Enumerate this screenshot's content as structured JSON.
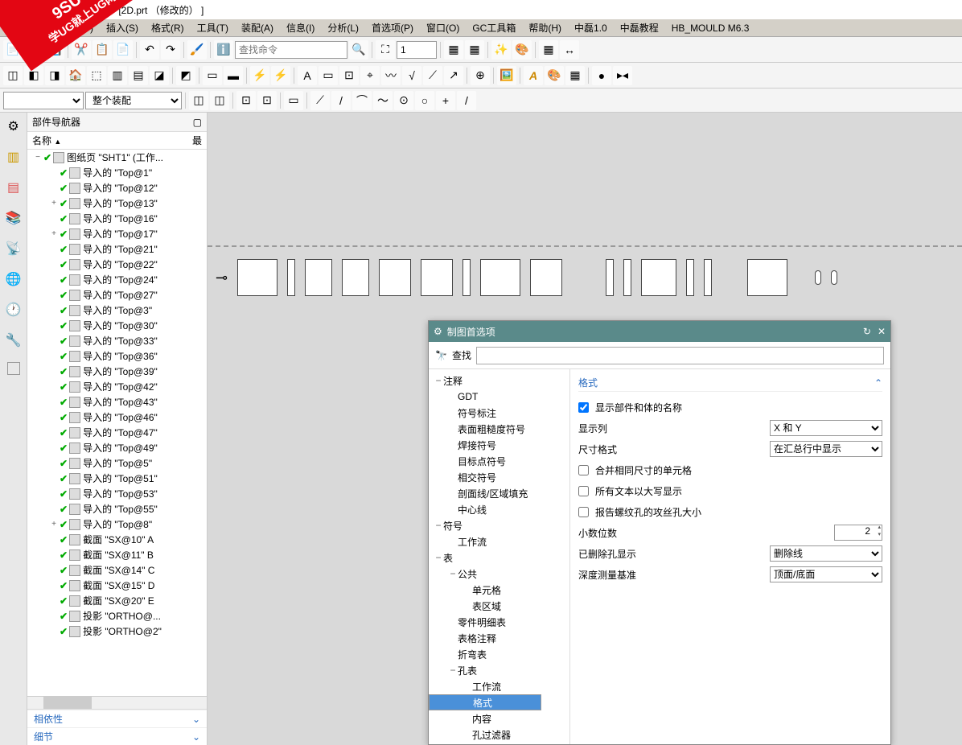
{
  "watermark": {
    "line1": "9SUG",
    "line2": "学UG就上UG网"
  },
  "title": " - [2D.prt （修改的） ]",
  "menu": [
    "视图(V)",
    "插入(S)",
    "格式(R)",
    "工具(T)",
    "装配(A)",
    "信息(I)",
    "分析(L)",
    "首选项(P)",
    "窗口(O)",
    "GC工具箱",
    "帮助(H)",
    "中磊1.0",
    "中磊教程",
    "HB_MOULD M6.3"
  ],
  "toolbar1": {
    "search_placeholder": "查找命令",
    "num_value": "1"
  },
  "toolbar2": {
    "assembly_dropdown": "整个装配"
  },
  "nav": {
    "title": "部件导航器",
    "col1": "名称",
    "col2": "最",
    "root": "图纸页 \"SHT1\" (工作...",
    "items": [
      "导入的 \"Top@1\"",
      "导入的 \"Top@12\"",
      "导入的 \"Top@13\"",
      "导入的 \"Top@16\"",
      "导入的 \"Top@17\"",
      "导入的 \"Top@21\"",
      "导入的 \"Top@22\"",
      "导入的 \"Top@24\"",
      "导入的 \"Top@27\"",
      "导入的 \"Top@3\"",
      "导入的 \"Top@30\"",
      "导入的 \"Top@33\"",
      "导入的 \"Top@36\"",
      "导入的 \"Top@39\"",
      "导入的 \"Top@42\"",
      "导入的 \"Top@43\"",
      "导入的 \"Top@46\"",
      "导入的 \"Top@47\"",
      "导入的 \"Top@49\"",
      "导入的 \"Top@5\"",
      "导入的 \"Top@51\"",
      "导入的 \"Top@53\"",
      "导入的 \"Top@55\"",
      "导入的 \"Top@8\"",
      "截面 \"SX@10\" A",
      "截面 \"SX@11\" B",
      "截面 \"SX@14\" C",
      "截面 \"SX@15\" D",
      "截面 \"SX@20\" E",
      "投影 \"ORTHO@...",
      "投影 \"ORTHO@2\""
    ],
    "expandable": [
      2,
      4,
      23
    ],
    "footer": {
      "deps": "相依性",
      "detail": "细节"
    }
  },
  "dialog": {
    "title": "制图首选项",
    "search_label": "查找",
    "tree": [
      {
        "t": "注释",
        "d": 0,
        "e": "−"
      },
      {
        "t": "GDT",
        "d": 1
      },
      {
        "t": "符号标注",
        "d": 1
      },
      {
        "t": "表面粗糙度符号",
        "d": 1
      },
      {
        "t": "焊接符号",
        "d": 1
      },
      {
        "t": "目标点符号",
        "d": 1
      },
      {
        "t": "相交符号",
        "d": 1
      },
      {
        "t": "剖面线/区域填充",
        "d": 1
      },
      {
        "t": "中心线",
        "d": 1
      },
      {
        "t": "符号",
        "d": 0,
        "e": "−"
      },
      {
        "t": "工作流",
        "d": 1
      },
      {
        "t": "表",
        "d": 0,
        "e": "−"
      },
      {
        "t": "公共",
        "d": 1,
        "e": "−"
      },
      {
        "t": "单元格",
        "d": 2
      },
      {
        "t": "表区域",
        "d": 2
      },
      {
        "t": "零件明细表",
        "d": 1
      },
      {
        "t": "表格注释",
        "d": 1
      },
      {
        "t": "折弯表",
        "d": 1
      },
      {
        "t": "孔表",
        "d": 1,
        "e": "−"
      },
      {
        "t": "工作流",
        "d": 2
      },
      {
        "t": "格式",
        "d": 2,
        "sel": true
      },
      {
        "t": "内容",
        "d": 2
      },
      {
        "t": "孔过滤器",
        "d": 2
      }
    ],
    "panel": {
      "section": "格式",
      "show_names_label": "显示部件和体的名称",
      "show_names_checked": true,
      "display_col_label": "显示列",
      "display_col_value": "X 和 Y",
      "dim_format_label": "尺寸格式",
      "dim_format_value": "在汇总行中显示",
      "merge_label": "合并相同尺寸的单元格",
      "merge_checked": false,
      "uppercase_label": "所有文本以大写显示",
      "uppercase_checked": false,
      "report_label": "报告螺纹孔的攻丝孔大小",
      "report_checked": false,
      "decimals_label": "小数位数",
      "decimals_value": "2",
      "deleted_label": "已删除孔显示",
      "deleted_value": "删除线",
      "depth_label": "深度测量基准",
      "depth_value": "顶面/底面"
    }
  }
}
